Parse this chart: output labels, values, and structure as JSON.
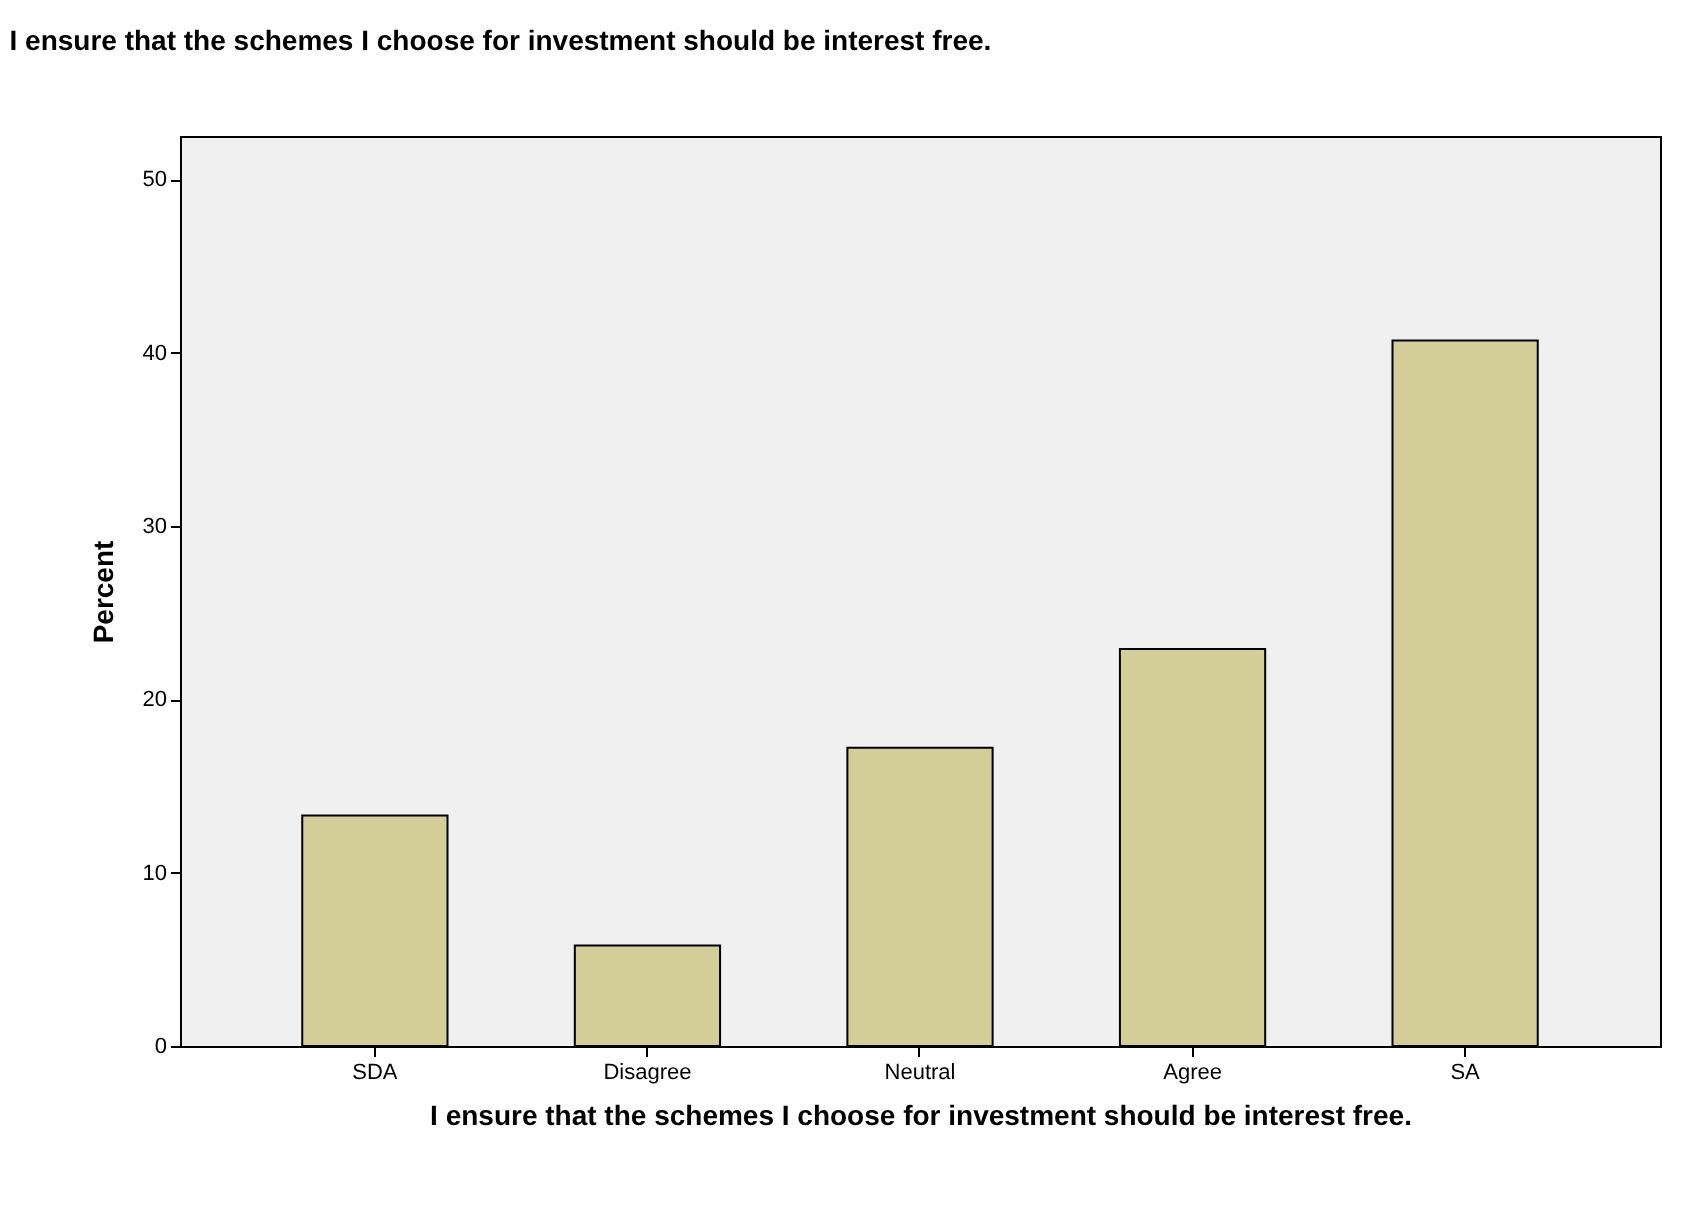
{
  "chart_data": {
    "type": "bar",
    "title": "I ensure that the schemes I choose for investment should be interest free.",
    "xlabel": "I ensure that the schemes I choose for investment should be interest free.",
    "ylabel": "Percent",
    "categories": [
      "SDA",
      "Disagree",
      "Neutral",
      "Agree",
      "SA"
    ],
    "values": [
      13.3,
      5.8,
      17.2,
      22.9,
      40.7
    ],
    "color": "#d3ce97",
    "ylim": [
      0,
      52.5
    ],
    "yticks": [
      0,
      10,
      20,
      30,
      40,
      50
    ],
    "grid": false
  }
}
